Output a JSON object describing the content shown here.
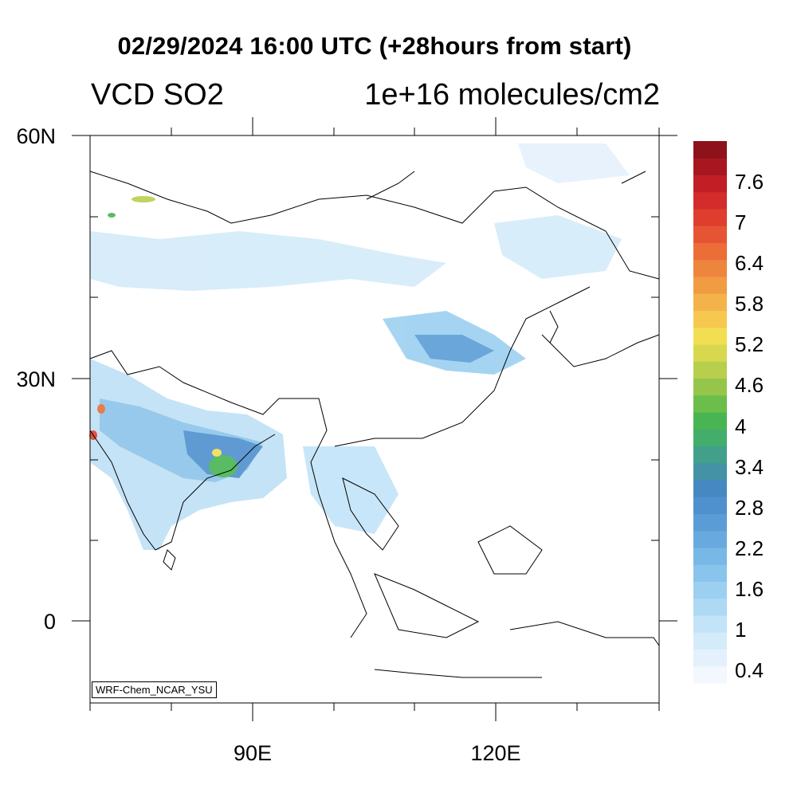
{
  "header": {
    "title": "02/29/2024 16:00 UTC (+28hours from start)",
    "variable": "VCD SO2",
    "units": "1e+16 molecules/cm2"
  },
  "axes": {
    "lat_labels": [
      "60N",
      "30N",
      "0"
    ],
    "lon_labels": [
      "90E",
      "120E"
    ],
    "lat_values": [
      60,
      30,
      0
    ],
    "lon_values": [
      90,
      120
    ],
    "lon_range": [
      70,
      140
    ],
    "lat_range": [
      -10,
      60
    ]
  },
  "colorbar": {
    "labels": [
      "7.6",
      "7",
      "6.4",
      "5.8",
      "5.2",
      "4.6",
      "4",
      "3.4",
      "2.8",
      "2.2",
      "1.6",
      "1",
      "0.4"
    ],
    "colors": [
      "#f2f8fe",
      "#e4f1fc",
      "#d4ebfa",
      "#c2e3f8",
      "#aed9f4",
      "#9cd0f1",
      "#89c4ec",
      "#78b8e6",
      "#68aadf",
      "#5a9dd6",
      "#4f90cf",
      "#4689c2",
      "#4392a6",
      "#42a08a",
      "#43ad6c",
      "#48b552",
      "#6cbe4a",
      "#95c64b",
      "#b8cf4d",
      "#d8d84f",
      "#f2de52",
      "#f6c84f",
      "#f4b34a",
      "#f19c43",
      "#ee853d",
      "#eb6d37",
      "#e55533",
      "#df3e2f",
      "#d32c2b",
      "#c11f25",
      "#a8171f",
      "#8e121b"
    ]
  },
  "credit": "WRF-Chem_NCAR_YSU"
}
